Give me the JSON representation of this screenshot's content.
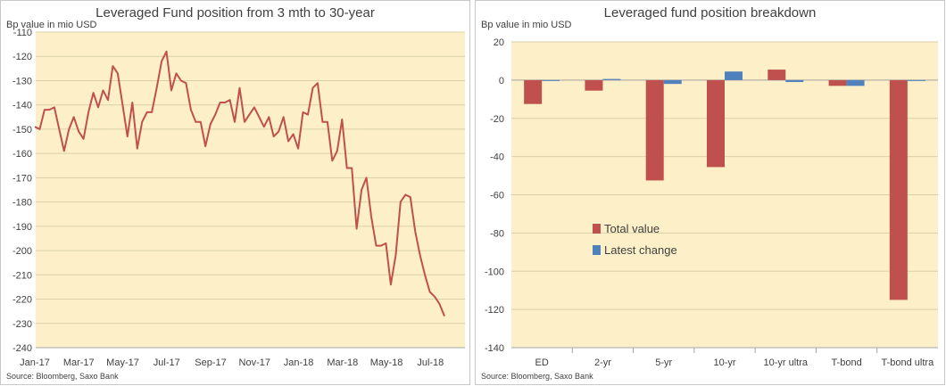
{
  "colors": {
    "plot_bg": "#fdf0c8",
    "grid": "#d9cfa8",
    "line": "#c0504d",
    "total": "#c0504d",
    "change": "#4f81bd"
  },
  "chart_data": [
    {
      "type": "line",
      "title": "Leveraged Fund position from 3 mth to 30-year",
      "ylabel": "Bp value in mio USD",
      "source": "Source: Bloomberg, Saxo Bank",
      "ylim": [
        -240,
        -110
      ],
      "yticks": [
        -110,
        -120,
        -130,
        -140,
        -150,
        -160,
        -170,
        -180,
        -190,
        -200,
        -210,
        -220,
        -230,
        -240
      ],
      "xticks": [
        "Jan-17",
        "Mar-17",
        "May-17",
        "Jul-17",
        "Sep-17",
        "Nov-17",
        "Jan-18",
        "Mar-18",
        "May-18",
        "Jul-18"
      ],
      "x_range": [
        0,
        82
      ],
      "x": [
        0,
        1,
        2,
        3,
        4,
        5,
        6,
        7,
        8,
        9,
        10,
        11,
        12,
        13,
        14,
        15,
        16,
        17,
        18,
        19,
        20,
        21,
        22,
        23,
        24,
        25,
        26,
        27,
        28,
        29,
        30,
        31,
        32,
        33,
        34,
        35,
        36,
        37,
        38,
        39,
        40,
        41,
        42,
        43,
        44,
        45,
        46,
        47,
        48,
        49,
        50,
        51,
        52,
        53,
        54,
        55,
        56,
        57,
        58,
        59,
        60,
        61,
        62,
        63,
        64,
        65,
        66,
        67,
        68,
        69,
        70,
        71,
        72,
        73,
        74,
        75,
        76,
        77,
        78,
        79,
        80,
        81,
        82
      ],
      "values": [
        -149,
        -150,
        -142,
        -142,
        -141,
        -150,
        -159,
        -150,
        -145,
        -151,
        -154,
        -143,
        -135,
        -141,
        -134,
        -138,
        -124,
        -127,
        -140,
        -153,
        -139,
        -158,
        -147,
        -143,
        -143,
        -133,
        -122,
        -118,
        -134,
        -127,
        -130,
        -131,
        -142,
        -147,
        -147,
        -157,
        -148,
        -144,
        -139,
        -139,
        -138,
        -147,
        -133,
        -147,
        -144,
        -141,
        -145,
        -149,
        -145,
        -153,
        -151,
        -145,
        -155,
        -152,
        -158,
        -143,
        -144,
        -133,
        -131,
        -147,
        -147,
        -163,
        -159,
        -146,
        -166,
        -166,
        -191,
        -175,
        -170,
        -186,
        -198,
        -198,
        -197,
        -214,
        -202,
        -180,
        -177,
        -178,
        -192,
        -202,
        -210,
        -217,
        -219
      ],
      "tail": [
        -222,
        -227
      ],
      "series": [
        {
          "values_ref": "values"
        }
      ]
    },
    {
      "type": "bar",
      "title": "Leveraged fund position breakdown",
      "ylabel": "Bp value in mio USD",
      "source": "Source: Bloomberg, Saxo Bank",
      "ylim": [
        -140,
        20
      ],
      "yticks": [
        20,
        0,
        -20,
        -40,
        -60,
        -80,
        -100,
        -120,
        -140
      ],
      "categories": [
        "ED",
        "2-yr",
        "5-yr",
        "10-yr",
        "10-yr ultra",
        "T-bond",
        "T-bond ultra"
      ],
      "series": [
        {
          "name": "Total value",
          "values": [
            -12.5,
            -5.5,
            -52.5,
            -45.5,
            5.5,
            -3,
            -115
          ]
        },
        {
          "name": "Latest change",
          "values": [
            -0.3,
            0.6,
            -2,
            4.5,
            -1,
            -3,
            -0.3
          ]
        }
      ],
      "legend_position": "center"
    }
  ]
}
